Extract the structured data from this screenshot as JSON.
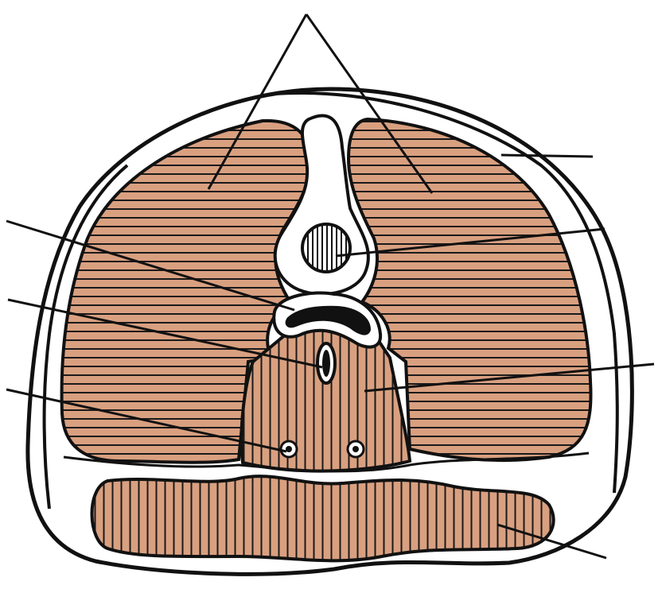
{
  "figure": {
    "kind": "anatomical-cross-section",
    "labels_printed": [],
    "leader_line_count": 8
  },
  "colors": {
    "muscle_fill": "#D9A080",
    "outline": "#111111",
    "background": "#FFFFFF",
    "hatch": "#1a1a1a"
  }
}
